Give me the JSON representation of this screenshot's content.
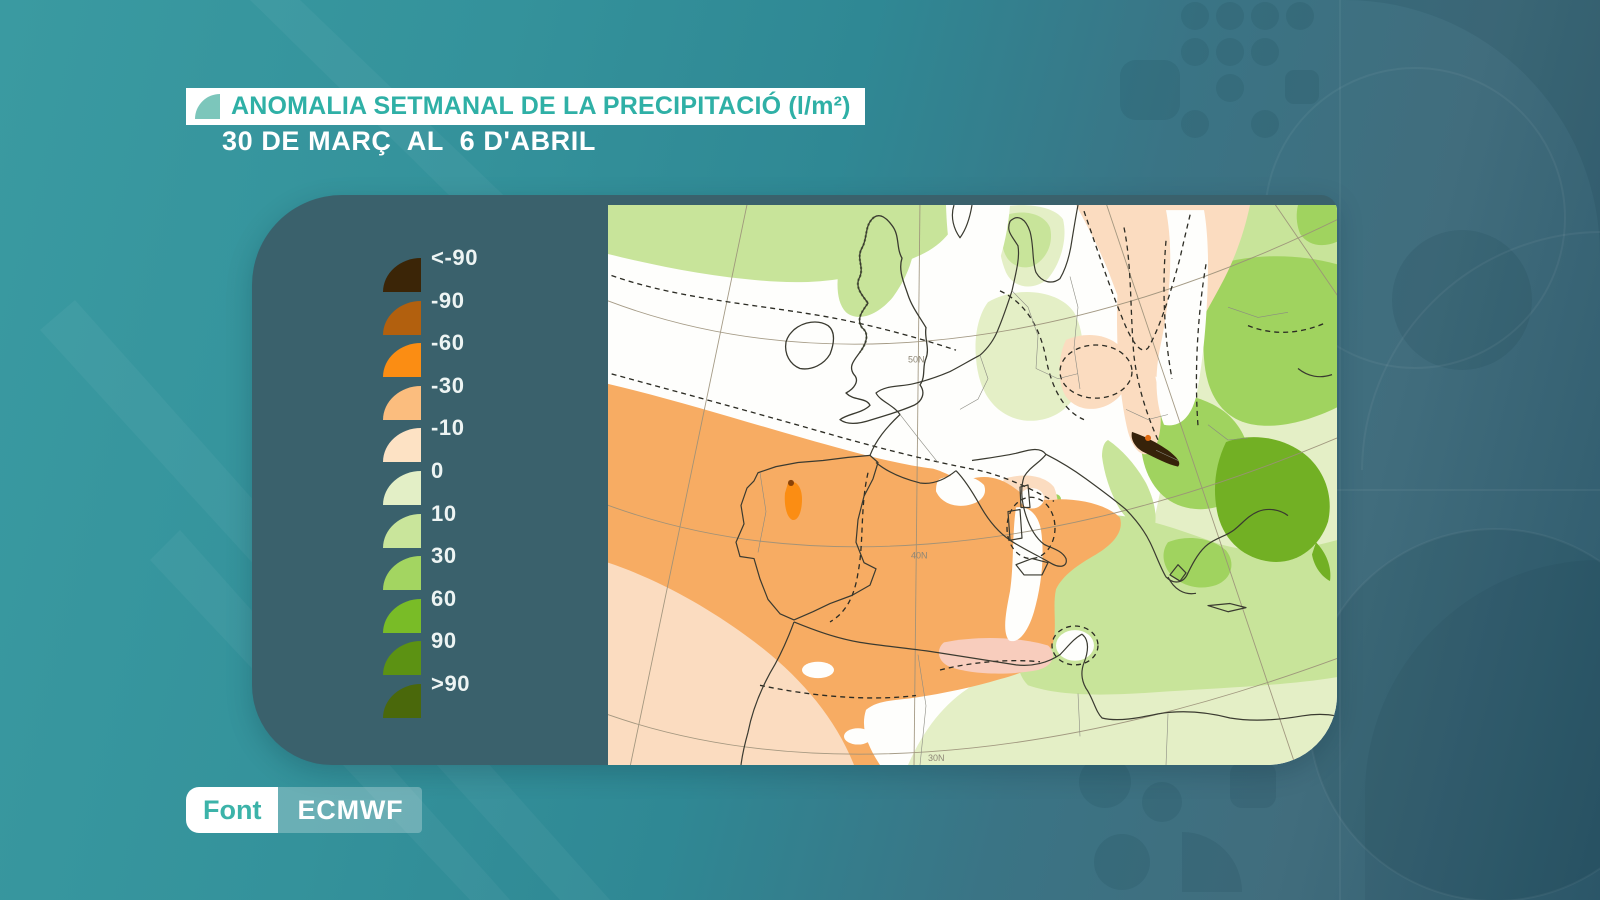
{
  "header": {
    "title": "ANOMALIA SETMANAL DE LA PRECIPITACIÓ (l/m²)",
    "subtitle": "30 DE MARÇ  AL  6 D'ABRIL"
  },
  "legend": {
    "entries": [
      {
        "label": "<-90",
        "color": "#3b2507"
      },
      {
        "label": "-90",
        "color": "#b2600e"
      },
      {
        "label": "-60",
        "color": "#fb8d13"
      },
      {
        "label": "-30",
        "color": "#fbbd7e"
      },
      {
        "label": "-10",
        "color": "#fde2c4"
      },
      {
        "label": "0",
        "color": "#e3efc6"
      },
      {
        "label": "10",
        "color": "#c9e59b"
      },
      {
        "label": "30",
        "color": "#a3d561"
      },
      {
        "label": "60",
        "color": "#79bc27"
      },
      {
        "label": "90",
        "color": "#5c9213"
      },
      {
        "label": ">90",
        "color": "#4a680b"
      }
    ]
  },
  "map": {
    "type": "filled-contour precipitation anomaly map",
    "region": "Europe and western Mediterranean",
    "units": "l/m²",
    "graticule_labels": [
      "50N",
      "40N",
      "30N"
    ],
    "anomaly_summary": "Negative anomaly (orange/brown) over the Atlantic, Iberia, France and the Alps; positive anomaly (greens) over northern Atlantic band, eastern Europe, Balkans, Greece and North Africa"
  },
  "source": {
    "label": "Font",
    "value": "ECMWF"
  },
  "colors": {
    "accent_teal": "#2fb0a6",
    "badge_icon_teal": "#7cc6bb",
    "panel_dark": "#3a616c",
    "background_left": "#39979e",
    "background_right": "#3f6b7b"
  }
}
